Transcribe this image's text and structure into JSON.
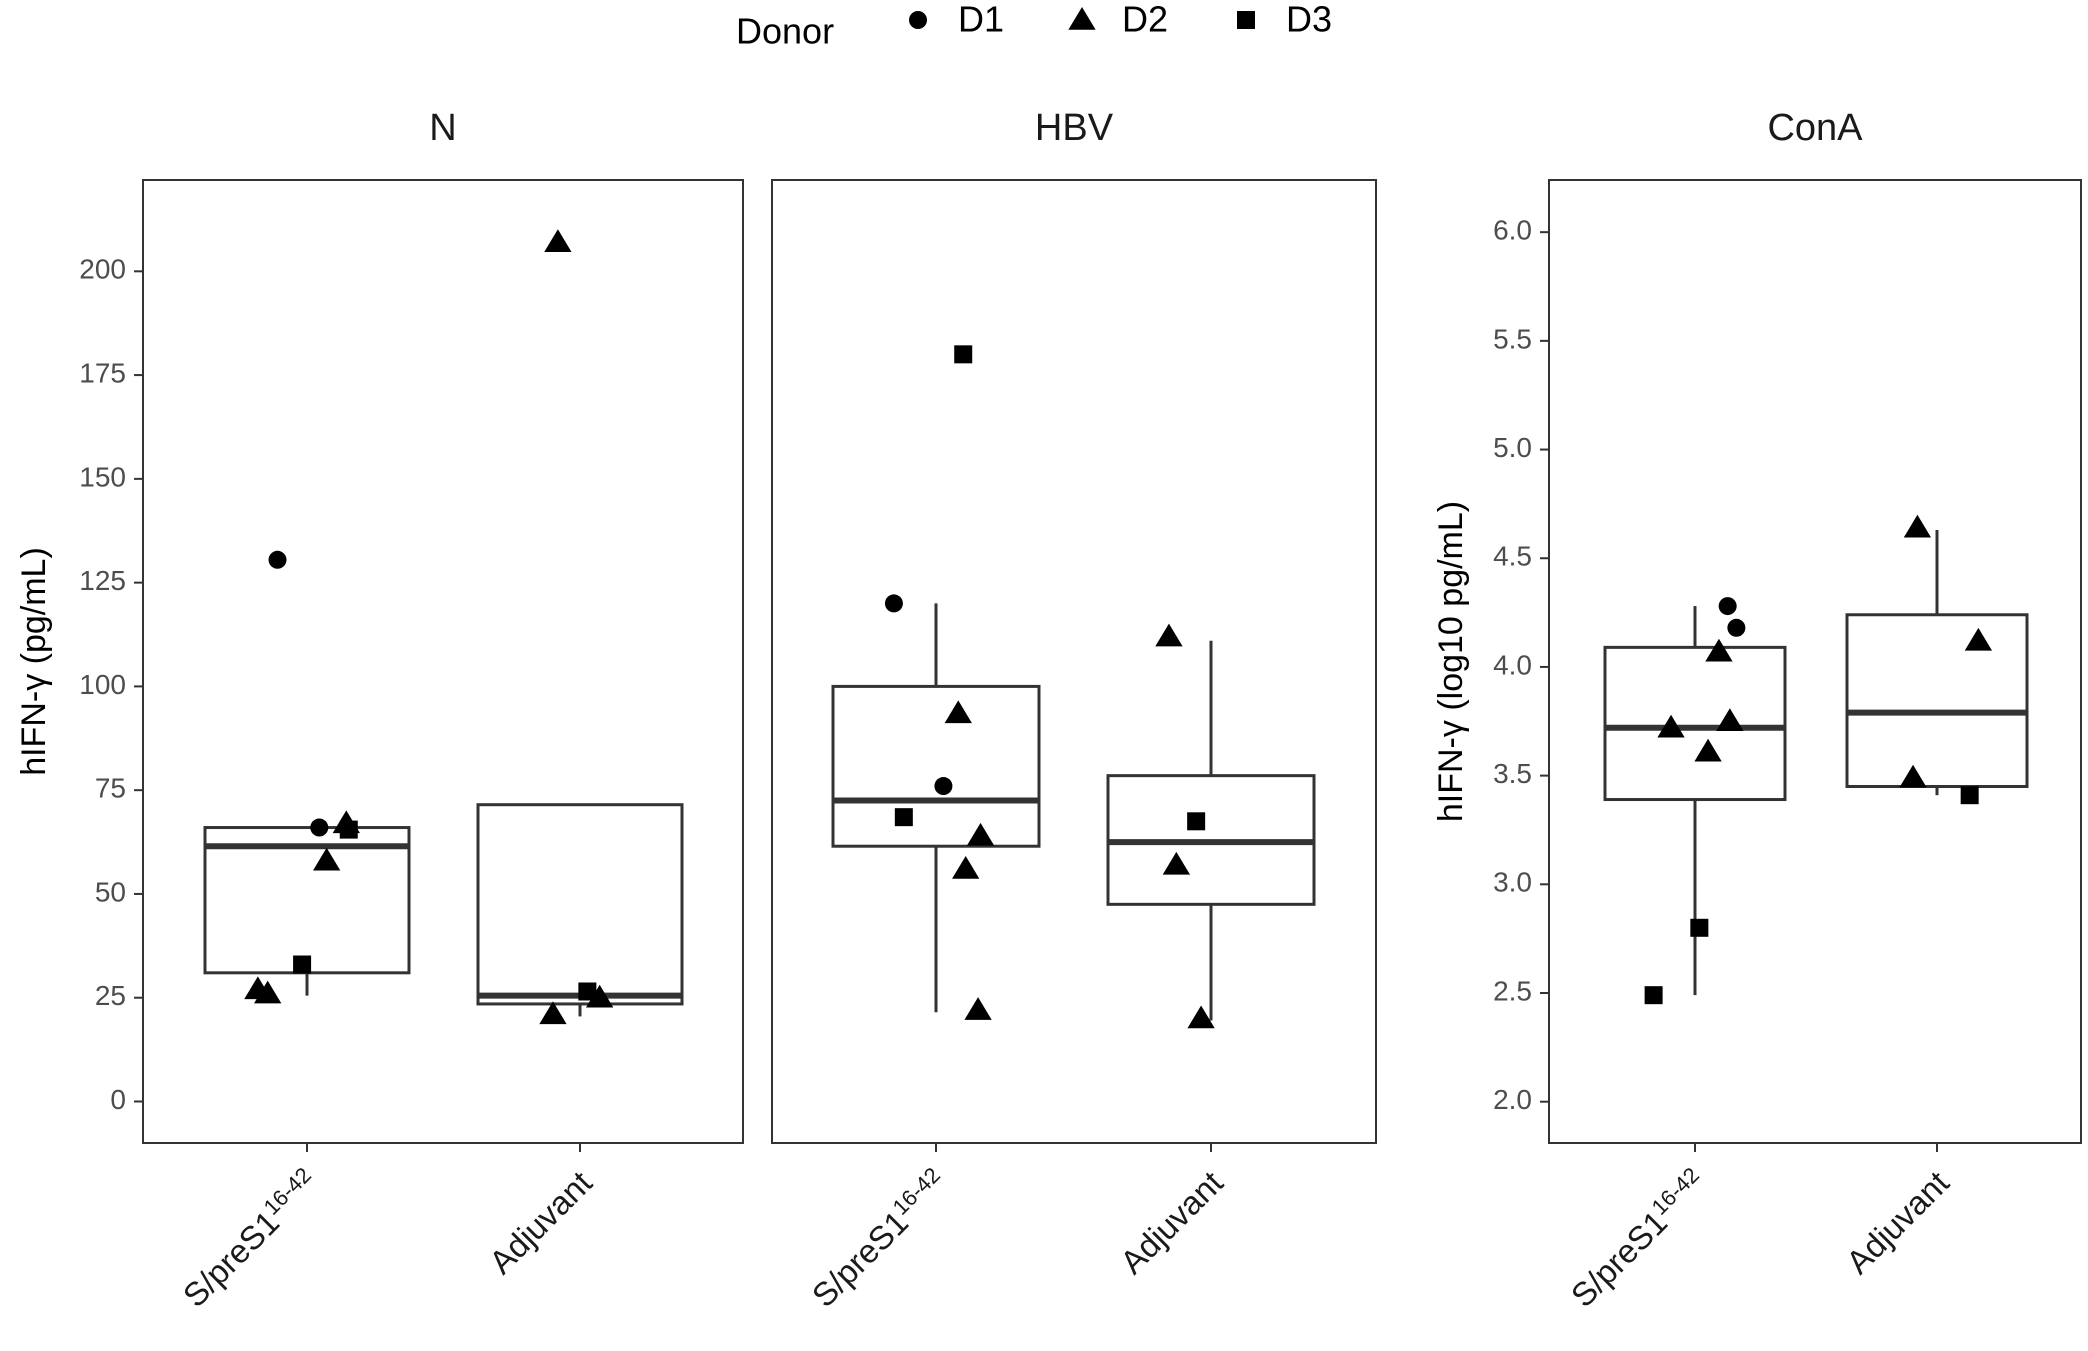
{
  "chart_data": {
    "type": "boxplot",
    "legend": {
      "title": "Donor",
      "position": "top",
      "entries": [
        {
          "key": "D1",
          "label": "D1",
          "shape": "circle"
        },
        {
          "key": "D2",
          "label": "D2",
          "shape": "triangle"
        },
        {
          "key": "D3",
          "label": "D3",
          "shape": "square"
        }
      ]
    },
    "xtick_base": [
      "S/preS1",
      "Adjuvant"
    ],
    "xtick_superscript": "16-42",
    "panels": [
      {
        "title": "N",
        "ylabel": "hIFN-γ (pg/mL)",
        "ylim": [
          -10,
          222
        ],
        "yticks": [
          0,
          25,
          50,
          75,
          100,
          125,
          150,
          175,
          200
        ],
        "yticks_label": [
          "0",
          "25",
          "50",
          "75",
          "100",
          "125",
          "150",
          "175",
          "200"
        ],
        "groups": [
          {
            "box": {
              "lower_whisker": 25.5,
              "q1": 31,
              "median": 61.5,
              "q3": 66,
              "upper_whisker": 66
            },
            "points": [
              {
                "donor": "D1",
                "y": 130.5,
                "jitter": -0.12
              },
              {
                "donor": "D1",
                "y": 66,
                "jitter": 0.05
              },
              {
                "donor": "D2",
                "y": 27,
                "jitter": -0.2
              },
              {
                "donor": "D2",
                "y": 26,
                "jitter": -0.16
              },
              {
                "donor": "D2",
                "y": 58,
                "jitter": 0.08
              },
              {
                "donor": "D2",
                "y": 67,
                "jitter": 0.16
              },
              {
                "donor": "D3",
                "y": 33,
                "jitter": -0.02
              },
              {
                "donor": "D3",
                "y": 65.5,
                "jitter": 0.17
              }
            ]
          },
          {
            "box": {
              "lower_whisker": 20.5,
              "q1": 23.5,
              "median": 25.5,
              "q3": 71.5,
              "upper_whisker": 71.5
            },
            "points": [
              {
                "donor": "D2",
                "y": 207,
                "jitter": -0.09
              },
              {
                "donor": "D2",
                "y": 21,
                "jitter": -0.11
              },
              {
                "donor": "D2",
                "y": 25,
                "jitter": 0.08
              },
              {
                "donor": "D3",
                "y": 26.5,
                "jitter": 0.03
              }
            ]
          }
        ]
      },
      {
        "title": "HBV",
        "ylabel": "",
        "ylim": [
          -10,
          222
        ],
        "yticks": [
          0,
          25,
          50,
          75,
          100,
          125,
          150,
          175,
          200
        ],
        "yticks_label": [],
        "groups": [
          {
            "box": {
              "lower_whisker": 21.5,
              "q1": 61.5,
              "median": 72.5,
              "q3": 100,
              "upper_whisker": 120
            },
            "points": [
              {
                "donor": "D1",
                "y": 120,
                "jitter": -0.17
              },
              {
                "donor": "D1",
                "y": 76,
                "jitter": 0.03
              },
              {
                "donor": "D2",
                "y": 93.5,
                "jitter": 0.09
              },
              {
                "donor": "D2",
                "y": 64,
                "jitter": 0.18
              },
              {
                "donor": "D2",
                "y": 56,
                "jitter": 0.12
              },
              {
                "donor": "D2",
                "y": 22,
                "jitter": 0.17
              },
              {
                "donor": "D3",
                "y": 180,
                "jitter": 0.11
              },
              {
                "donor": "D3",
                "y": 68.5,
                "jitter": -0.13
              }
            ]
          },
          {
            "box": {
              "lower_whisker": 19.5,
              "q1": 47.5,
              "median": 62.5,
              "q3": 78.5,
              "upper_whisker": 111
            },
            "points": [
              {
                "donor": "D2",
                "y": 112,
                "jitter": -0.17
              },
              {
                "donor": "D2",
                "y": 57,
                "jitter": -0.14
              },
              {
                "donor": "D2",
                "y": 20,
                "jitter": -0.04
              },
              {
                "donor": "D3",
                "y": 67.5,
                "jitter": -0.06
              }
            ]
          }
        ]
      },
      {
        "title": "ConA",
        "ylabel": "hIFN-γ (log10 pg/mL)",
        "ylim": [
          1.81,
          6.24
        ],
        "yticks": [
          2.0,
          2.5,
          3.0,
          3.5,
          4.0,
          4.5,
          5.0,
          5.5,
          6.0
        ],
        "yticks_label": [
          "2.0",
          "2.5",
          "3.0",
          "3.5",
          "4.0",
          "4.5",
          "5.0",
          "5.5",
          "6.0"
        ],
        "groups": [
          {
            "box": {
              "lower_whisker": 2.49,
              "q1": 3.39,
              "median": 3.72,
              "q3": 4.09,
              "upper_whisker": 4.28
            },
            "points": [
              {
                "donor": "D1",
                "y": 4.28,
                "jitter": 0.15
              },
              {
                "donor": "D1",
                "y": 4.18,
                "jitter": 0.19
              },
              {
                "donor": "D2",
                "y": 3.72,
                "jitter": -0.11
              },
              {
                "donor": "D2",
                "y": 4.07,
                "jitter": 0.11
              },
              {
                "donor": "D2",
                "y": 3.61,
                "jitter": 0.06
              },
              {
                "donor": "D2",
                "y": 3.75,
                "jitter": 0.16
              },
              {
                "donor": "D3",
                "y": 2.49,
                "jitter": -0.19
              },
              {
                "donor": "D3",
                "y": 2.8,
                "jitter": 0.02
              }
            ]
          },
          {
            "box": {
              "lower_whisker": 3.41,
              "q1": 3.45,
              "median": 3.79,
              "q3": 4.24,
              "upper_whisker": 4.63
            },
            "points": [
              {
                "donor": "D2",
                "y": 4.64,
                "jitter": -0.09
              },
              {
                "donor": "D2",
                "y": 3.49,
                "jitter": -0.11
              },
              {
                "donor": "D2",
                "y": 4.12,
                "jitter": 0.19
              },
              {
                "donor": "D3",
                "y": 3.41,
                "jitter": 0.15
              }
            ]
          }
        ]
      }
    ]
  }
}
